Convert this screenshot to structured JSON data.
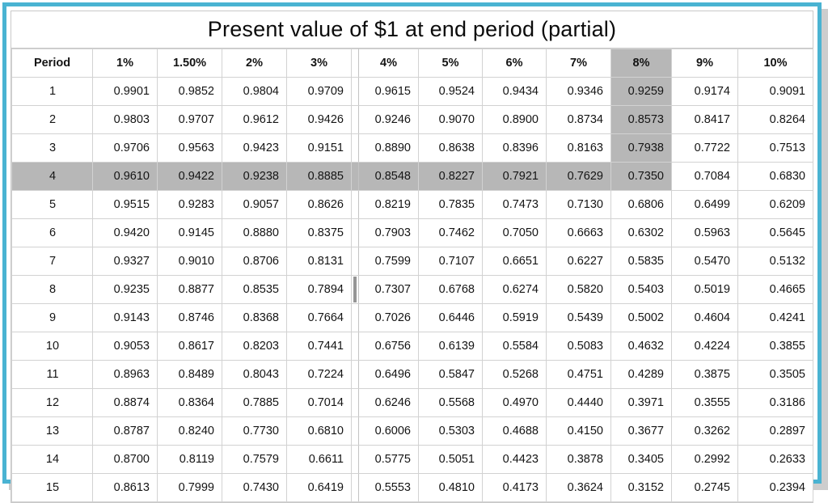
{
  "title": "Present value of $1 at end period (partial)",
  "colors": {
    "accent_border": "#4ab3d2",
    "highlight_gray": "#b7b7b7",
    "gridline": "#d2d2d2",
    "shadow": "#cdcdcd"
  },
  "table": {
    "period_header": "Period",
    "rate_headers": [
      "1%",
      "1.50%",
      "2%",
      "3%",
      "4%",
      "5%",
      "6%",
      "7%",
      "8%",
      "9%",
      "10%"
    ],
    "pane_divider_after_rate": "3%",
    "highlight": {
      "highlighted_row_period": "4",
      "highlighted_column_header": "8%",
      "intersection_value": "0.7350"
    },
    "rows": [
      {
        "period": "1",
        "values": [
          "0.9901",
          "0.9852",
          "0.9804",
          "0.9709",
          "0.9615",
          "0.9524",
          "0.9434",
          "0.9346",
          "0.9259",
          "0.9174",
          "0.9091"
        ]
      },
      {
        "period": "2",
        "values": [
          "0.9803",
          "0.9707",
          "0.9612",
          "0.9426",
          "0.9246",
          "0.9070",
          "0.8900",
          "0.8734",
          "0.8573",
          "0.8417",
          "0.8264"
        ]
      },
      {
        "period": "3",
        "values": [
          "0.9706",
          "0.9563",
          "0.9423",
          "0.9151",
          "0.8890",
          "0.8638",
          "0.8396",
          "0.8163",
          "0.7938",
          "0.7722",
          "0.7513"
        ]
      },
      {
        "period": "4",
        "values": [
          "0.9610",
          "0.9422",
          "0.9238",
          "0.8885",
          "0.8548",
          "0.8227",
          "0.7921",
          "0.7629",
          "0.7350",
          "0.7084",
          "0.6830"
        ]
      },
      {
        "period": "5",
        "values": [
          "0.9515",
          "0.9283",
          "0.9057",
          "0.8626",
          "0.8219",
          "0.7835",
          "0.7473",
          "0.7130",
          "0.6806",
          "0.6499",
          "0.6209"
        ]
      },
      {
        "period": "6",
        "values": [
          "0.9420",
          "0.9145",
          "0.8880",
          "0.8375",
          "0.7903",
          "0.7462",
          "0.7050",
          "0.6663",
          "0.6302",
          "0.5963",
          "0.5645"
        ]
      },
      {
        "period": "7",
        "values": [
          "0.9327",
          "0.9010",
          "0.8706",
          "0.8131",
          "0.7599",
          "0.7107",
          "0.6651",
          "0.6227",
          "0.5835",
          "0.5470",
          "0.5132"
        ]
      },
      {
        "period": "8",
        "values": [
          "0.9235",
          "0.8877",
          "0.8535",
          "0.7894",
          "0.7307",
          "0.6768",
          "0.6274",
          "0.5820",
          "0.5403",
          "0.5019",
          "0.4665"
        ]
      },
      {
        "period": "9",
        "values": [
          "0.9143",
          "0.8746",
          "0.8368",
          "0.7664",
          "0.7026",
          "0.6446",
          "0.5919",
          "0.5439",
          "0.5002",
          "0.4604",
          "0.4241"
        ]
      },
      {
        "period": "10",
        "values": [
          "0.9053",
          "0.8617",
          "0.8203",
          "0.7441",
          "0.6756",
          "0.6139",
          "0.5584",
          "0.5083",
          "0.4632",
          "0.4224",
          "0.3855"
        ]
      },
      {
        "period": "11",
        "values": [
          "0.8963",
          "0.8489",
          "0.8043",
          "0.7224",
          "0.6496",
          "0.5847",
          "0.5268",
          "0.4751",
          "0.4289",
          "0.3875",
          "0.3505"
        ]
      },
      {
        "period": "12",
        "values": [
          "0.8874",
          "0.8364",
          "0.7885",
          "0.7014",
          "0.6246",
          "0.5568",
          "0.4970",
          "0.4440",
          "0.3971",
          "0.3555",
          "0.3186"
        ]
      },
      {
        "period": "13",
        "values": [
          "0.8787",
          "0.8240",
          "0.7730",
          "0.6810",
          "0.6006",
          "0.5303",
          "0.4688",
          "0.4150",
          "0.3677",
          "0.3262",
          "0.2897"
        ]
      },
      {
        "period": "14",
        "values": [
          "0.8700",
          "0.8119",
          "0.7579",
          "0.6611",
          "0.5775",
          "0.5051",
          "0.4423",
          "0.3878",
          "0.3405",
          "0.2992",
          "0.2633"
        ]
      },
      {
        "period": "15",
        "values": [
          "0.8613",
          "0.7999",
          "0.7430",
          "0.6419",
          "0.5553",
          "0.4810",
          "0.4173",
          "0.3624",
          "0.3152",
          "0.2745",
          "0.2394"
        ]
      }
    ]
  }
}
